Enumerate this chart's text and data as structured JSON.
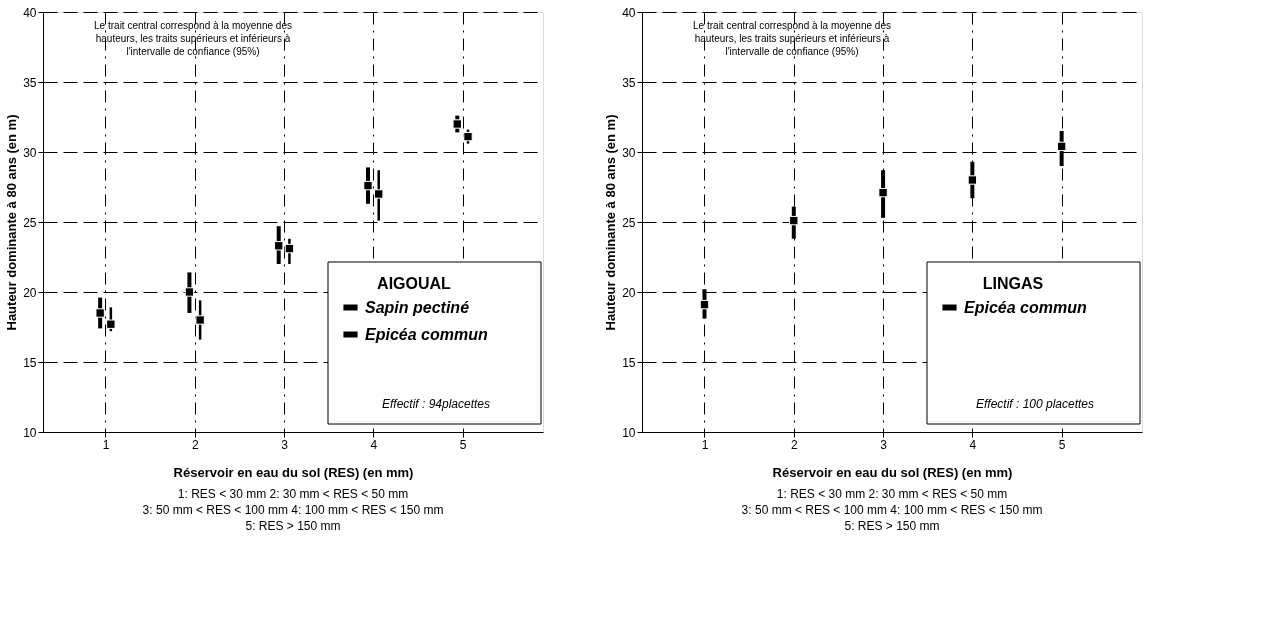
{
  "chart_data": [
    {
      "type": "scatter",
      "legend_title": "AIGOUAL",
      "xlabel": "Réservoir en eau du sol (RES) (en mm)",
      "ylabel": "Hauteur dominante à 80 ans (en m)",
      "categories": [
        "1",
        "2",
        "3",
        "4",
        "5"
      ],
      "ylim": [
        10,
        40
      ],
      "yticks": [
        10,
        15,
        20,
        25,
        30,
        35,
        40
      ],
      "grid": true,
      "legend": "bottom right",
      "marker": "square",
      "series": [
        {
          "name": "Sapin pectiné",
          "color": "#000000",
          "values": [
            18.5,
            20.0,
            23.3,
            27.6,
            32.0
          ],
          "errors": [
            [
              17.4,
              19.6
            ],
            [
              18.5,
              21.4
            ],
            [
              22.0,
              24.7
            ],
            [
              26.3,
              28.9
            ],
            [
              31.4,
              32.6
            ]
          ]
        },
        {
          "name": "Epicéa commun",
          "color": "#000000",
          "values": [
            17.7,
            18.0,
            23.1,
            27.0,
            31.1
          ],
          "errors": [
            [
              17.2,
              18.9
            ],
            [
              16.6,
              19.4
            ],
            [
              22.0,
              23.8
            ],
            [
              25.1,
              28.7
            ],
            [
              30.6,
              31.6
            ]
          ]
        }
      ],
      "annotations": [
        "Le trait central correspond à la moyenne des hauteurs, les traits supérieurs et inférieurs à l'intervalle de confiance (95%)",
        "Effectif : 94placettes",
        "1: RES < 30 mm    2: 30 mm < RES < 50 mm",
        "3: 50 mm < RES < 100 mm    4: 100 mm < RES < 150 mm",
        "5: RES > 150 mm"
      ]
    },
    {
      "type": "scatter",
      "legend_title": "LINGAS",
      "xlabel": "Réservoir en eau du sol (RES) (en mm)",
      "ylabel": "Hauteur dominante à 80 ans (en m)",
      "categories": [
        "1",
        "2",
        "3",
        "4",
        "5"
      ],
      "ylim": [
        10,
        40
      ],
      "yticks": [
        10,
        15,
        20,
        25,
        30,
        35,
        40
      ],
      "grid": true,
      "legend": "bottom right",
      "marker": "square",
      "series": [
        {
          "name": "Epicéa commun",
          "color": "#000000",
          "values": [
            19.1,
            25.1,
            27.1,
            28.0,
            30.4
          ],
          "errors": [
            [
              18.1,
              20.2
            ],
            [
              23.8,
              26.1
            ],
            [
              25.3,
              28.7
            ],
            [
              26.7,
              29.3
            ],
            [
              29.0,
              31.5
            ]
          ]
        }
      ],
      "annotations": [
        "Le trait central correspond à la moyenne des hauteurs, les traits supérieurs et inférieurs à l'intervalle de confiance (95%)",
        "Effectif : 100 placettes",
        "1: RES < 30 mm    2: 30 mm < RES < 50 mm",
        "3: 50 mm < RES < 100 mm    4: 100 mm < RES < 150 mm",
        "5: RES > 150 mm"
      ]
    }
  ]
}
